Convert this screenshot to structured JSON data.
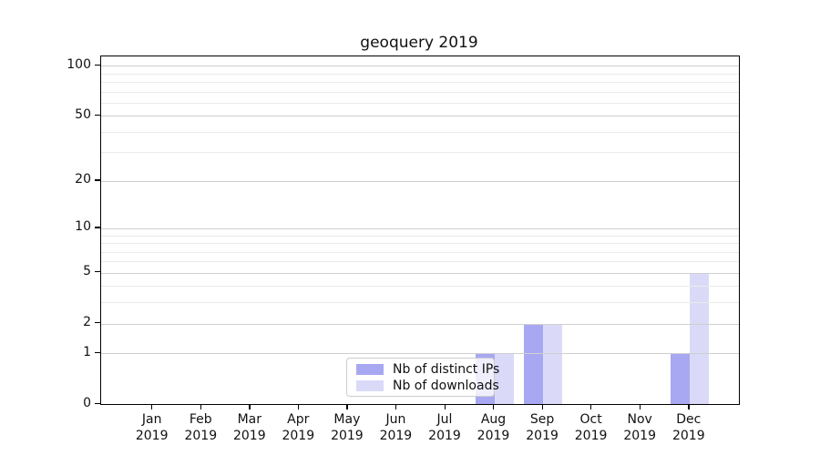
{
  "chart_data": {
    "type": "bar",
    "title": "geoquery 2019",
    "categories": [
      "Jan",
      "Feb",
      "Mar",
      "Apr",
      "May",
      "Jun",
      "Jul",
      "Aug",
      "Sep",
      "Oct",
      "Nov",
      "Dec"
    ],
    "x_year": "2019",
    "series": [
      {
        "name": "Nb of distinct IPs",
        "color": "#a8a8f2",
        "values": [
          0,
          0,
          0,
          0,
          0,
          0,
          0,
          1,
          2,
          0,
          0,
          1
        ]
      },
      {
        "name": "Nb of downloads",
        "color": "#dadaf8",
        "values": [
          0,
          0,
          0,
          0,
          0,
          0,
          0,
          1,
          2,
          0,
          0,
          5
        ]
      }
    ],
    "y_axis": {
      "scale": "log1p",
      "ticks": [
        0,
        1,
        2,
        5,
        10,
        20,
        50,
        100
      ],
      "tick_labels": [
        "0",
        "1",
        "2",
        "5",
        "10",
        "20",
        "50",
        "100"
      ],
      "minor_gridlines": [
        3,
        4,
        6,
        7,
        8,
        9,
        30,
        40,
        60,
        70,
        80,
        90
      ],
      "ylim": [
        0,
        113
      ]
    },
    "xlabel": "",
    "ylabel": "",
    "grid": "on",
    "legend": {
      "position": "lower center"
    }
  }
}
